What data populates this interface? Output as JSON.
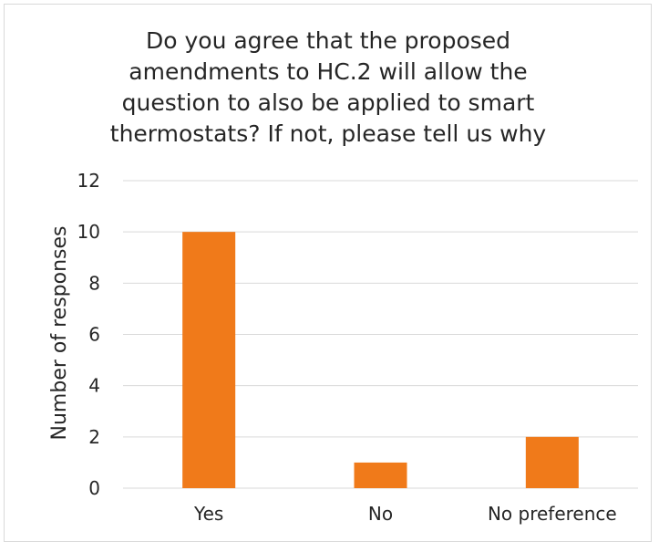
{
  "chart_data": {
    "type": "bar",
    "title_lines": [
      "Do you agree that the proposed",
      "amendments to HC.2 will allow the",
      "question to also be applied to smart",
      "thermostats? If not, please tell us why"
    ],
    "categories": [
      "Yes",
      "No",
      "No preference"
    ],
    "values": [
      10,
      1,
      2
    ],
    "xlabel": "",
    "ylabel": "Number of responses",
    "ylim": [
      0,
      12
    ],
    "yticks": [
      0,
      2,
      4,
      6,
      8,
      10,
      12
    ],
    "grid": true,
    "legend": "none",
    "bar_color": "#F07A1A",
    "grid_color": "#d9d9d9"
  }
}
